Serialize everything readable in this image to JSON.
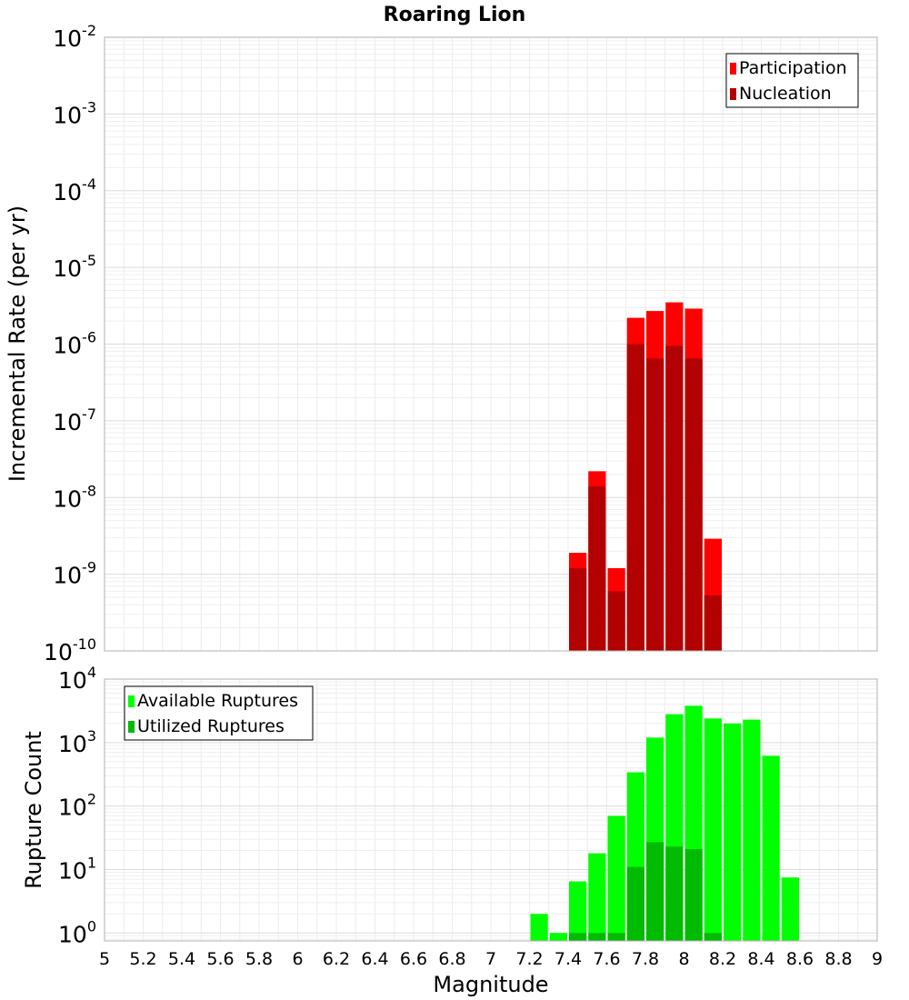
{
  "chart_data": [
    {
      "type": "bar",
      "title": "Roaring Lion",
      "ylabel": "Incremental Rate (per yr)",
      "xlabel": "",
      "y_scale": "log",
      "ylim": [
        1e-10,
        0.01
      ],
      "xlim": [
        5,
        9
      ],
      "grid": true,
      "legend_position": "top-right",
      "y_ticks": [
        {
          "base": "10",
          "exp": "-10"
        },
        {
          "base": "10",
          "exp": "-9"
        },
        {
          "base": "10",
          "exp": "-8"
        },
        {
          "base": "10",
          "exp": "-7"
        },
        {
          "base": "10",
          "exp": "-6"
        },
        {
          "base": "10",
          "exp": "-5"
        },
        {
          "base": "10",
          "exp": "-4"
        },
        {
          "base": "10",
          "exp": "-3"
        },
        {
          "base": "10",
          "exp": "-2"
        }
      ],
      "x": [
        7.45,
        7.55,
        7.65,
        7.75,
        7.85,
        7.95,
        8.05,
        8.15
      ],
      "bar_width": 0.1,
      "series": [
        {
          "name": "Participation",
          "color": "#ff0000",
          "values": [
            1.9e-09,
            2.2e-08,
            1.2e-09,
            2.2e-06,
            2.7e-06,
            3.5e-06,
            2.9e-06,
            2.9e-09
          ]
        },
        {
          "name": "Nucleation",
          "color": "#b30000",
          "values": [
            1.2e-09,
            1.4e-08,
            6e-10,
            1e-06,
            6.5e-07,
            9.5e-07,
            6.5e-07,
            5.3e-10
          ]
        }
      ]
    },
    {
      "type": "bar",
      "title": "",
      "ylabel": "Rupture Count",
      "xlabel": "Magnitude",
      "y_scale": "log",
      "ylim": [
        0.75,
        10000
      ],
      "xlim": [
        5,
        9
      ],
      "grid": true,
      "legend_position": "top-left",
      "y_ticks": [
        {
          "base": "10",
          "exp": "0"
        },
        {
          "base": "10",
          "exp": "1"
        },
        {
          "base": "10",
          "exp": "2"
        },
        {
          "base": "10",
          "exp": "3"
        },
        {
          "base": "10",
          "exp": "4"
        }
      ],
      "x_ticks": [
        "5",
        "5.2",
        "5.4",
        "5.6",
        "5.8",
        "6",
        "6.2",
        "6.4",
        "6.6",
        "6.8",
        "7",
        "7.2",
        "7.4",
        "7.6",
        "7.8",
        "8",
        "8.2",
        "8.4",
        "8.6",
        "8.8",
        "9"
      ],
      "x": [
        7.25,
        7.35,
        7.45,
        7.55,
        7.65,
        7.75,
        7.85,
        7.95,
        8.05,
        8.15,
        8.25,
        8.35,
        8.45,
        8.55
      ],
      "bar_width": 0.1,
      "series": [
        {
          "name": "Available Ruptures",
          "color": "#00ff00",
          "values": [
            2,
            1,
            6.5,
            18,
            70,
            340,
            1200,
            2800,
            3800,
            2400,
            2000,
            2300,
            620,
            7.5
          ]
        },
        {
          "name": "Utilized Ruptures",
          "color": "#00bb00",
          "values": [
            0,
            0,
            1,
            1,
            1,
            11,
            27,
            23,
            21,
            1,
            0,
            0,
            0,
            0
          ]
        }
      ]
    }
  ]
}
